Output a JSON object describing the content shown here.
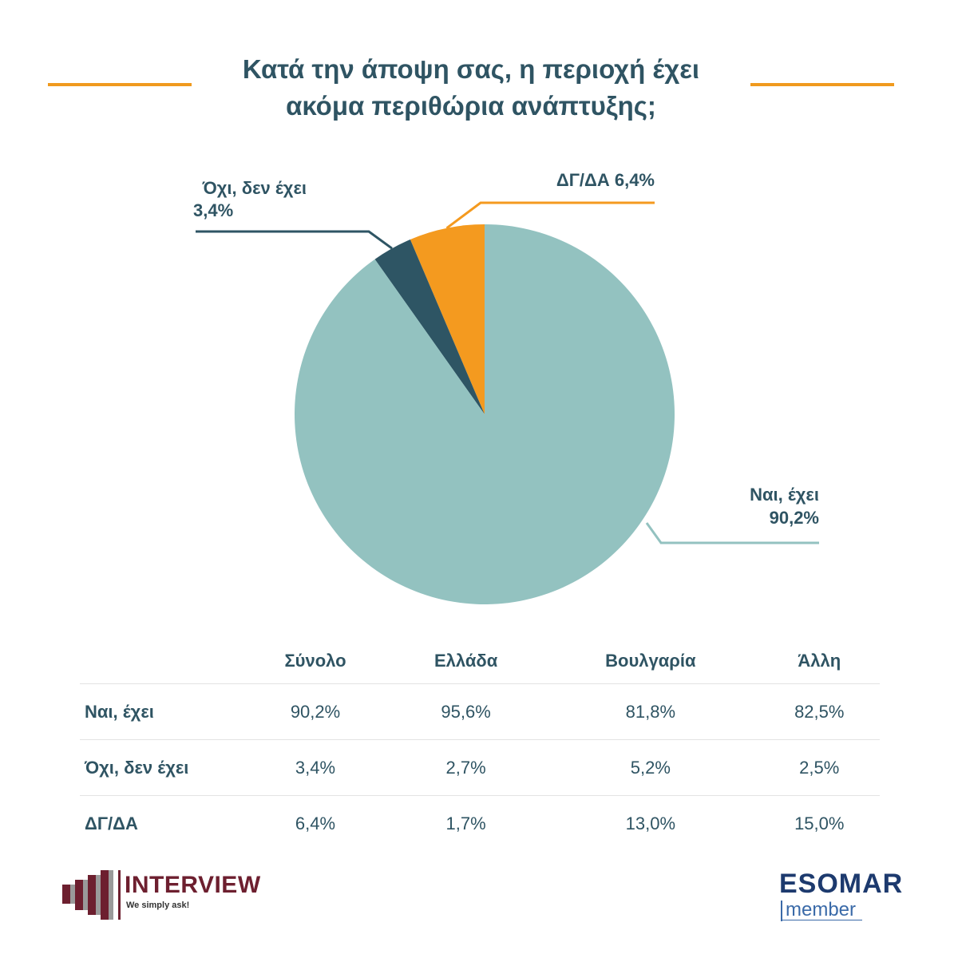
{
  "title_lines": [
    "Κατά την άποψη σας, η περιοχή έχει",
    "ακόμα περιθώρια ανάπτυξης;"
  ],
  "chart_data": {
    "type": "pie",
    "slices": [
      {
        "label": "ΔΓ/ΔΑ",
        "value": 6.4,
        "display": "ΔΓ/ΔΑ 6,4%",
        "color": "#f49a1f"
      },
      {
        "label": "Ναι, έχει",
        "value": 90.2,
        "display_lines": [
          "Ναι, έχει",
          "90,2%"
        ],
        "color": "#93c2c0"
      },
      {
        "label": "Όχι, δεν έχει",
        "value": 3.4,
        "display_lines": [
          "Όχι, δεν έχει",
          "3,4%"
        ],
        "color": "#2e5564"
      }
    ],
    "start": "12 o'clock",
    "direction": "counterclockwise from ΔΓ/ΔΑ"
  },
  "table": {
    "columns": [
      "Σύνολο",
      "Ελλάδα",
      "Βουλγαρία",
      "Άλλη"
    ],
    "rows": [
      {
        "label": "Ναι, έχει",
        "values": [
          "90,2%",
          "95,6%",
          "81,8%",
          "82,5%"
        ]
      },
      {
        "label": "Όχι, δεν έχει",
        "values": [
          "3,4%",
          "2,7%",
          "5,2%",
          "2,5%"
        ]
      },
      {
        "label": "ΔΓ/ΔΑ",
        "values": [
          "6,4%",
          "1,7%",
          "13,0%",
          "15,0%"
        ]
      }
    ]
  },
  "logos": {
    "interview": {
      "name": "INTERVIEW",
      "tagline": "We simply ask!"
    },
    "esomar": {
      "name": "ESOMAR",
      "sub": "member"
    }
  },
  "colors": {
    "accent": "#f09a1e",
    "title": "#2f5463",
    "brand_interview": "#6d1f2f",
    "brand_esomar": "#1d3a6e"
  }
}
